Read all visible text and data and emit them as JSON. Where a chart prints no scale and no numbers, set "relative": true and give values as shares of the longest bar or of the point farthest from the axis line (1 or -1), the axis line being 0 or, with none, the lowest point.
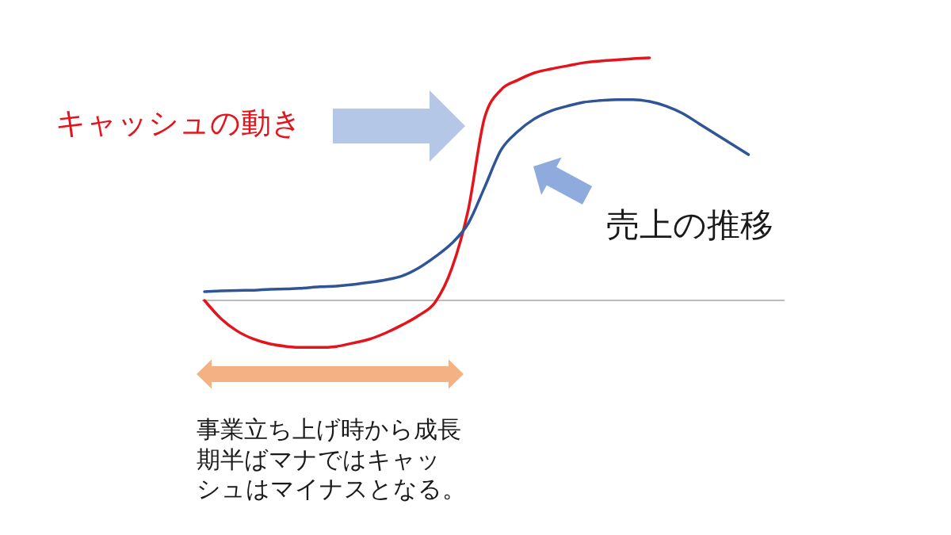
{
  "chart_data": {
    "type": "line",
    "relative": true,
    "categories": [
      null,
      null,
      null,
      null,
      null,
      null,
      null,
      null,
      null,
      null,
      null,
      null,
      null,
      null,
      null,
      null,
      null,
      null,
      null,
      null,
      null,
      null,
      null,
      null,
      null,
      null,
      null,
      null,
      null,
      null,
      null,
      null,
      null,
      null,
      null,
      null
    ],
    "series": [
      {
        "name": "キャッシュの動き",
        "color": "#e3141b",
        "values": [
          0,
          -0.075,
          -0.127,
          -0.16,
          -0.18,
          -0.19,
          -0.194,
          -0.194,
          -0.19,
          -0.176,
          -0.16,
          -0.134,
          -0.101,
          -0.062,
          -0.007,
          0.131,
          0.373,
          0.755,
          0.869,
          0.908,
          0.938,
          0.954,
          0.967,
          0.98,
          0.987,
          0.992,
          0.997,
          1,
          null,
          null,
          null,
          null,
          null,
          null,
          null,
          null
        ]
      },
      {
        "name": "売上の推移",
        "color": "#2f5597",
        "values": [
          0.036,
          0.039,
          0.041,
          0.042,
          0.046,
          0.047,
          0.051,
          0.056,
          0.059,
          0.065,
          0.074,
          0.085,
          0.101,
          0.134,
          0.18,
          0.235,
          0.317,
          0.467,
          0.621,
          0.696,
          0.748,
          0.781,
          0.801,
          0.817,
          0.824,
          0.828,
          0.828,
          0.82,
          0.801,
          0.771,
          0.729,
          0.686,
          0.644,
          0.601,
          null,
          null
        ]
      }
    ],
    "annotations": [
      "事業立ち上げ時から成長期半ばマナではキャッシュはマイナスとなる。"
    ]
  }
}
